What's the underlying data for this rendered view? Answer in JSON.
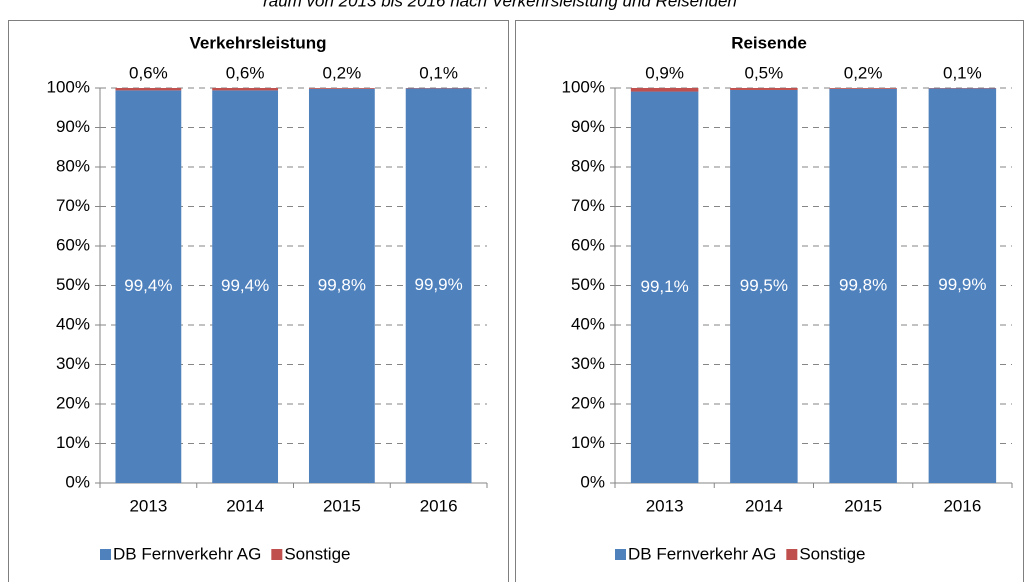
{
  "header": {
    "subtitle": "raum von 2013 bis 2016 nach Verkehrsleistung und Reisenden"
  },
  "chart_data": [
    {
      "type": "stacked_bar",
      "title": "Verkehrsleistung",
      "categories": [
        "2013",
        "2014",
        "2015",
        "2016"
      ],
      "series": [
        {
          "name": "DB Fernverkehr AG",
          "color": "#4f81bd",
          "values": [
            99.4,
            99.4,
            99.8,
            99.9
          ],
          "value_labels": [
            "99,4%",
            "99,4%",
            "99,8%",
            "99,9%"
          ]
        },
        {
          "name": "Sonstige",
          "color": "#c0504d",
          "values": [
            0.6,
            0.6,
            0.2,
            0.1
          ],
          "value_labels": [
            "0,6%",
            "0,6%",
            "0,2%",
            "0,1%"
          ]
        }
      ],
      "ylim": [
        0,
        100
      ],
      "yticks": [
        {
          "value": 0,
          "label": "0%"
        },
        {
          "value": 10,
          "label": "10%"
        },
        {
          "value": 20,
          "label": "20%"
        },
        {
          "value": 30,
          "label": "30%"
        },
        {
          "value": 40,
          "label": "40%"
        },
        {
          "value": 50,
          "label": "50%"
        },
        {
          "value": 60,
          "label": "60%"
        },
        {
          "value": 70,
          "label": "70%"
        },
        {
          "value": 80,
          "label": "80%"
        },
        {
          "value": 90,
          "label": "90%"
        },
        {
          "value": 100,
          "label": "100%"
        }
      ],
      "grid": true,
      "legend": "bottom"
    },
    {
      "type": "stacked_bar",
      "title": "Reisende",
      "categories": [
        "2013",
        "2014",
        "2015",
        "2016"
      ],
      "series": [
        {
          "name": "DB Fernverkehr AG",
          "color": "#4f81bd",
          "values": [
            99.1,
            99.5,
            99.8,
            99.9
          ],
          "value_labels": [
            "99,1%",
            "99,5%",
            "99,8%",
            "99,9%"
          ]
        },
        {
          "name": "Sonstige",
          "color": "#c0504d",
          "values": [
            0.9,
            0.5,
            0.2,
            0.1
          ],
          "value_labels": [
            "0,9%",
            "0,5%",
            "0,2%",
            "0,1%"
          ]
        }
      ],
      "ylim": [
        0,
        100
      ],
      "yticks": [
        {
          "value": 0,
          "label": "0%"
        },
        {
          "value": 10,
          "label": "10%"
        },
        {
          "value": 20,
          "label": "20%"
        },
        {
          "value": 30,
          "label": "30%"
        },
        {
          "value": 40,
          "label": "40%"
        },
        {
          "value": 50,
          "label": "50%"
        },
        {
          "value": 60,
          "label": "60%"
        },
        {
          "value": 70,
          "label": "70%"
        },
        {
          "value": 80,
          "label": "80%"
        },
        {
          "value": 90,
          "label": "90%"
        },
        {
          "value": 100,
          "label": "100%"
        }
      ],
      "grid": true,
      "legend": "bottom"
    }
  ]
}
